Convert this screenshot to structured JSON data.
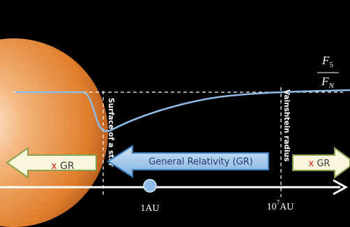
{
  "ratio": {
    "numerator": {
      "symbol": "F",
      "subscript": "5"
    },
    "denominator": {
      "symbol": "F",
      "subscript": "N"
    }
  },
  "markers": {
    "surface": "Surface of a star",
    "vainshtein": "Vainshtein radius"
  },
  "arrows": {
    "left": {
      "cross": "x",
      "label": "GR"
    },
    "middle": {
      "label": "General Relativity (GR)"
    },
    "right": {
      "cross": "x",
      "label": "GR"
    }
  },
  "axis": {
    "first": "1AU",
    "second": {
      "base": "10",
      "exponent": "7",
      "unit": "AU"
    }
  }
}
